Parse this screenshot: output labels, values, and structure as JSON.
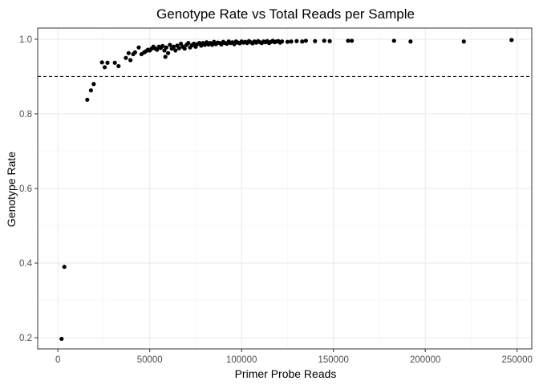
{
  "chart_data": {
    "type": "scatter",
    "title": "Genotype Rate vs Total Reads per Sample",
    "xlabel": "Primer Probe Reads",
    "ylabel": "Genotype Rate",
    "xlim": [
      -11000,
      258000
    ],
    "ylim": [
      0.17,
      1.03
    ],
    "x_ticks": [
      0,
      50000,
      100000,
      150000,
      200000,
      250000
    ],
    "x_tick_labels": [
      "0",
      "50000",
      "100000",
      "150000",
      "200000",
      "250000"
    ],
    "y_ticks": [
      0.2,
      0.4,
      0.6,
      0.8,
      1.0
    ],
    "y_tick_labels": [
      "0.2",
      "0.4",
      "0.6",
      "0.8",
      "1.0"
    ],
    "reference_line": {
      "y": 0.9,
      "style": "dashed"
    },
    "grid": true,
    "point_color": "#000000",
    "points": [
      [
        2000,
        0.197
      ],
      [
        3500,
        0.39
      ],
      [
        16000,
        0.838
      ],
      [
        18000,
        0.863
      ],
      [
        19500,
        0.88
      ],
      [
        24000,
        0.938
      ],
      [
        25500,
        0.925
      ],
      [
        27000,
        0.937
      ],
      [
        31000,
        0.937
      ],
      [
        33000,
        0.928
      ],
      [
        37000,
        0.95
      ],
      [
        38500,
        0.963
      ],
      [
        39500,
        0.944
      ],
      [
        41000,
        0.96
      ],
      [
        42000,
        0.965
      ],
      [
        44000,
        0.978
      ],
      [
        45500,
        0.96
      ],
      [
        47000,
        0.965
      ],
      [
        48000,
        0.968
      ],
      [
        49000,
        0.972
      ],
      [
        50000,
        0.97
      ],
      [
        51000,
        0.975
      ],
      [
        52000,
        0.98
      ],
      [
        53000,
        0.975
      ],
      [
        54000,
        0.972
      ],
      [
        55000,
        0.98
      ],
      [
        56000,
        0.977
      ],
      [
        57000,
        0.982
      ],
      [
        58000,
        0.97
      ],
      [
        58500,
        0.953
      ],
      [
        59000,
        0.978
      ],
      [
        60000,
        0.963
      ],
      [
        61000,
        0.985
      ],
      [
        62000,
        0.975
      ],
      [
        63000,
        0.98
      ],
      [
        64000,
        0.97
      ],
      [
        65000,
        0.983
      ],
      [
        66000,
        0.976
      ],
      [
        67000,
        0.988
      ],
      [
        68000,
        0.98
      ],
      [
        69000,
        0.975
      ],
      [
        70000,
        0.985
      ],
      [
        71000,
        0.99
      ],
      [
        72000,
        0.978
      ],
      [
        73000,
        0.984
      ],
      [
        74000,
        0.988
      ],
      [
        75000,
        0.98
      ],
      [
        76000,
        0.987
      ],
      [
        77000,
        0.99
      ],
      [
        78000,
        0.983
      ],
      [
        79000,
        0.99
      ],
      [
        80000,
        0.985
      ],
      [
        81000,
        0.992
      ],
      [
        82000,
        0.986
      ],
      [
        83000,
        0.99
      ],
      [
        84000,
        0.985
      ],
      [
        85000,
        0.993
      ],
      [
        86000,
        0.987
      ],
      [
        87000,
        0.991
      ],
      [
        88000,
        0.99
      ],
      [
        89000,
        0.986
      ],
      [
        90000,
        0.993
      ],
      [
        91000,
        0.99
      ],
      [
        92000,
        0.988
      ],
      [
        93000,
        0.994
      ],
      [
        94000,
        0.99
      ],
      [
        95000,
        0.992
      ],
      [
        96000,
        0.987
      ],
      [
        97000,
        0.994
      ],
      [
        98000,
        0.991
      ],
      [
        99000,
        0.989
      ],
      [
        100000,
        0.994
      ],
      [
        101000,
        0.991
      ],
      [
        102000,
        0.993
      ],
      [
        103000,
        0.99
      ],
      [
        104000,
        0.995
      ],
      [
        105000,
        0.992
      ],
      [
        106000,
        0.989
      ],
      [
        107000,
        0.994
      ],
      [
        108000,
        0.991
      ],
      [
        109000,
        0.995
      ],
      [
        110000,
        0.992
      ],
      [
        111000,
        0.99
      ],
      [
        112000,
        0.994
      ],
      [
        113000,
        0.992
      ],
      [
        114000,
        0.995
      ],
      [
        115000,
        0.99
      ],
      [
        116000,
        0.993
      ],
      [
        117000,
        0.996
      ],
      [
        118000,
        0.992
      ],
      [
        119000,
        0.994
      ],
      [
        120000,
        0.995
      ],
      [
        121000,
        0.991
      ],
      [
        122000,
        0.994
      ],
      [
        125000,
        0.993
      ],
      [
        127000,
        0.994
      ],
      [
        130000,
        0.995
      ],
      [
        133000,
        0.994
      ],
      [
        135000,
        0.996
      ],
      [
        140000,
        0.995
      ],
      [
        145000,
        0.996
      ],
      [
        148000,
        0.995
      ],
      [
        158000,
        0.996
      ],
      [
        160000,
        0.996
      ],
      [
        183000,
        0.996
      ],
      [
        192000,
        0.994
      ],
      [
        221000,
        0.994
      ],
      [
        247000,
        0.998
      ]
    ]
  }
}
